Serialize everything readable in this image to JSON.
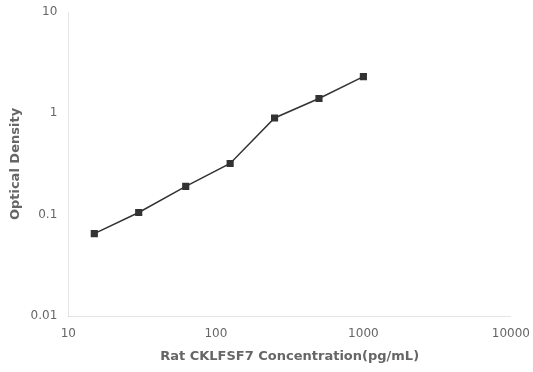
{
  "chart_data": {
    "type": "line",
    "x": [
      15,
      30,
      62.5,
      125,
      250,
      500,
      1000
    ],
    "values": [
      0.065,
      0.105,
      0.19,
      0.32,
      0.9,
      1.4,
      2.3
    ],
    "xlabel": "Rat CKLFSF7 Concentration(pg/mL)",
    "ylabel": "Optical Density",
    "xlim": [
      10,
      10000
    ],
    "ylim": [
      0.01,
      10
    ],
    "xticks": [
      10,
      100,
      1000,
      10000
    ],
    "yticks": [
      0.01,
      0.1,
      1,
      10
    ],
    "log": true,
    "grid": false,
    "color": "#333333",
    "marker": "square"
  }
}
